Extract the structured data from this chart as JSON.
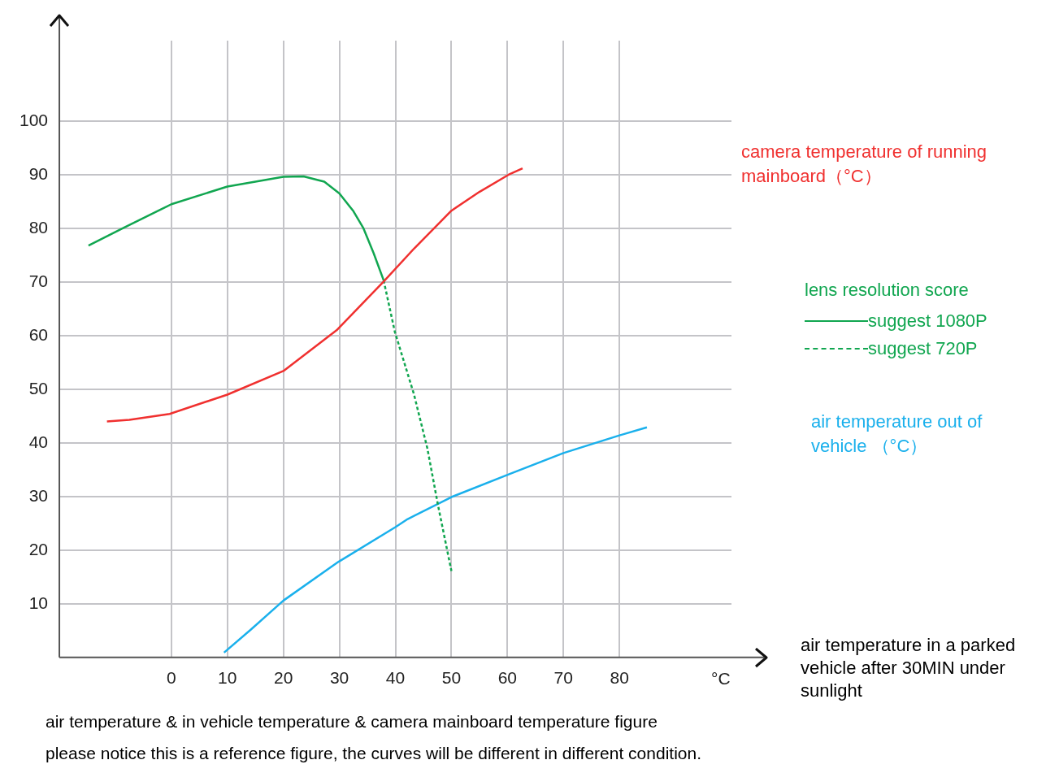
{
  "chart_data": {
    "type": "line",
    "title": "air temperature & in vehicle temperature & camera mainboard temperature figure",
    "xlabel": "air temperature in a parked vehicle after 30MIN under sunlight",
    "legend_title": "lens resolution score",
    "annotations": [
      "°C",
      "please notice this is a reference figure, the curves will be different in different condition."
    ],
    "xlim": [
      -20,
      100
    ],
    "ylim": [
      0,
      115
    ],
    "xticks": [
      0,
      10,
      20,
      30,
      40,
      50,
      60,
      70,
      80
    ],
    "yticks": [
      10,
      20,
      30,
      40,
      50,
      60,
      70,
      80,
      90,
      100
    ],
    "grid": true,
    "legend": "right",
    "marker": "none",
    "series": [
      {
        "name": "camera temperature of running mainboard（°C）",
        "color": "#f0302f",
        "x": [
          -11.5,
          -7.5,
          -0.3,
          10,
          20,
          29.5,
          37.9,
          43.3,
          50,
          55,
          60.2,
          62.7
        ],
        "values": [
          44,
          44.3,
          45.4,
          49,
          53.4,
          61,
          70.1,
          76.2,
          83.3,
          86.8,
          90,
          91.2
        ]
      },
      {
        "name": "suggest 1080P",
        "color": "#11a650",
        "line_style": "solid",
        "x": [
          -14.8,
          -8.7,
          0,
          10,
          20,
          23.6,
          27.3,
          30,
          32.5,
          34.3,
          36.1,
          37.9
        ],
        "values": [
          76.8,
          80,
          84.5,
          87.8,
          89.6,
          89.7,
          88.7,
          86.5,
          83.2,
          80,
          75.4,
          70.3
        ]
      },
      {
        "name": "suggest 720P",
        "color": "#11a650",
        "line_style": "dashed",
        "x": [
          37.9,
          39.9,
          43.3,
          45.7,
          47.6,
          50
        ],
        "values": [
          70.3,
          60.7,
          49.1,
          39,
          28.4,
          16.1
        ]
      },
      {
        "name": "air temperature out of vehicle （°C）",
        "color": "#1ab0ec",
        "x": [
          9.4,
          14.2,
          20,
          29.8,
          40,
          42.2,
          50,
          60.4,
          70,
          80,
          84.9
        ],
        "values": [
          0.9,
          5.2,
          10.6,
          17.8,
          24.3,
          25.8,
          29.9,
          34.2,
          38.1,
          41.4,
          42.9
        ]
      }
    ]
  }
}
